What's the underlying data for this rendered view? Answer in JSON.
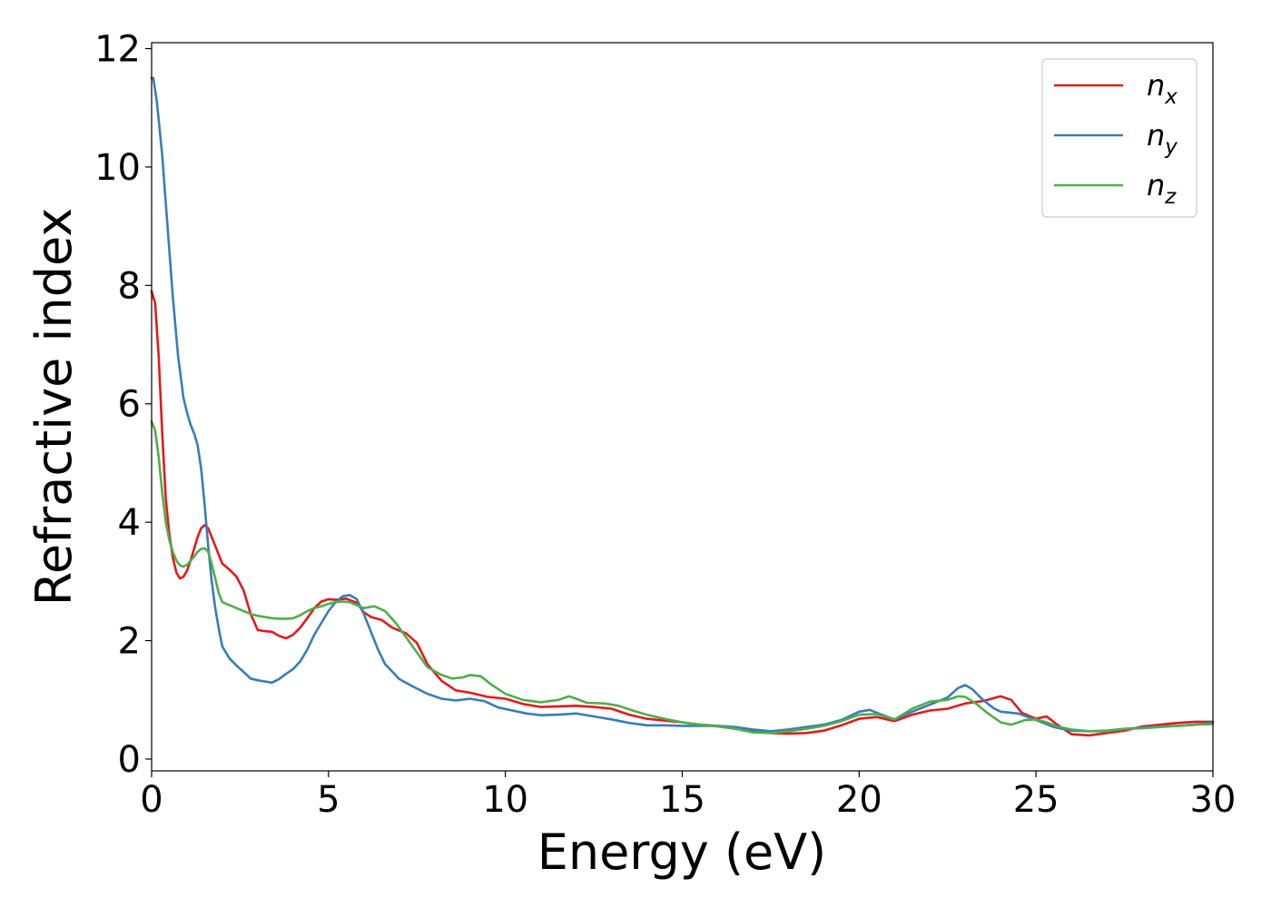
{
  "chart_data": {
    "type": "line",
    "title": "",
    "xlabel": "Energy (eV)",
    "ylabel": "Refractive index",
    "xlim": [
      0,
      30
    ],
    "ylim": [
      -0.2,
      12.1
    ],
    "xticks": [
      "0",
      "5",
      "10",
      "15",
      "20",
      "25",
      "30"
    ],
    "yticks": [
      "0",
      "2",
      "4",
      "6",
      "8",
      "10",
      "12"
    ],
    "grid": false,
    "legend_position": "top-right",
    "series": [
      {
        "name": "n_x",
        "label_base": "n",
        "label_sub": "x",
        "color": "#e41a1c",
        "points": [
          [
            0,
            7.9
          ],
          [
            0.1,
            7.7
          ],
          [
            0.2,
            6.8
          ],
          [
            0.3,
            5.5
          ],
          [
            0.4,
            4.4
          ],
          [
            0.5,
            3.8
          ],
          [
            0.6,
            3.4
          ],
          [
            0.7,
            3.15
          ],
          [
            0.8,
            3.05
          ],
          [
            0.9,
            3.08
          ],
          [
            1.0,
            3.18
          ],
          [
            1.1,
            3.35
          ],
          [
            1.2,
            3.55
          ],
          [
            1.3,
            3.75
          ],
          [
            1.4,
            3.9
          ],
          [
            1.5,
            3.95
          ],
          [
            1.6,
            3.9
          ],
          [
            1.7,
            3.75
          ],
          [
            1.8,
            3.6
          ],
          [
            1.9,
            3.45
          ],
          [
            2.0,
            3.3
          ],
          [
            2.2,
            3.2
          ],
          [
            2.4,
            3.08
          ],
          [
            2.6,
            2.85
          ],
          [
            2.8,
            2.45
          ],
          [
            3.0,
            2.18
          ],
          [
            3.2,
            2.16
          ],
          [
            3.4,
            2.15
          ],
          [
            3.6,
            2.08
          ],
          [
            3.8,
            2.04
          ],
          [
            4.0,
            2.1
          ],
          [
            4.2,
            2.22
          ],
          [
            4.4,
            2.38
          ],
          [
            4.6,
            2.55
          ],
          [
            4.8,
            2.66
          ],
          [
            5.0,
            2.7
          ],
          [
            5.2,
            2.69
          ],
          [
            5.5,
            2.71
          ],
          [
            5.8,
            2.64
          ],
          [
            6.0,
            2.48
          ],
          [
            6.2,
            2.4
          ],
          [
            6.5,
            2.35
          ],
          [
            6.8,
            2.22
          ],
          [
            7.2,
            2.12
          ],
          [
            7.5,
            1.96
          ],
          [
            7.8,
            1.6
          ],
          [
            8.2,
            1.32
          ],
          [
            8.6,
            1.16
          ],
          [
            9.0,
            1.12
          ],
          [
            9.5,
            1.05
          ],
          [
            10.0,
            1.02
          ],
          [
            10.5,
            0.93
          ],
          [
            11.0,
            0.88
          ],
          [
            11.5,
            0.89
          ],
          [
            12.0,
            0.9
          ],
          [
            12.5,
            0.88
          ],
          [
            13.0,
            0.85
          ],
          [
            13.5,
            0.75
          ],
          [
            14.0,
            0.68
          ],
          [
            14.5,
            0.65
          ],
          [
            15.0,
            0.62
          ],
          [
            15.5,
            0.58
          ],
          [
            16.0,
            0.56
          ],
          [
            16.5,
            0.52
          ],
          [
            17.0,
            0.47
          ],
          [
            17.5,
            0.44
          ],
          [
            18.0,
            0.43
          ],
          [
            18.5,
            0.44
          ],
          [
            19.0,
            0.48
          ],
          [
            19.5,
            0.57
          ],
          [
            20.0,
            0.68
          ],
          [
            20.5,
            0.71
          ],
          [
            21.0,
            0.64
          ],
          [
            21.5,
            0.75
          ],
          [
            22.0,
            0.82
          ],
          [
            22.5,
            0.85
          ],
          [
            23.0,
            0.94
          ],
          [
            23.5,
            0.98
          ],
          [
            24.0,
            1.06
          ],
          [
            24.3,
            1.0
          ],
          [
            24.6,
            0.78
          ],
          [
            25.0,
            0.68
          ],
          [
            25.3,
            0.72
          ],
          [
            25.6,
            0.58
          ],
          [
            26.0,
            0.42
          ],
          [
            26.5,
            0.4
          ],
          [
            27.0,
            0.44
          ],
          [
            27.5,
            0.48
          ],
          [
            28.0,
            0.55
          ],
          [
            28.5,
            0.58
          ],
          [
            29.0,
            0.61
          ],
          [
            29.5,
            0.63
          ],
          [
            30.0,
            0.63
          ]
        ]
      },
      {
        "name": "n_y",
        "label_base": "n",
        "label_sub": "y",
        "color": "#377eb8",
        "points": [
          [
            0,
            11.5
          ],
          [
            0.05,
            11.5
          ],
          [
            0.15,
            11.1
          ],
          [
            0.3,
            10.2
          ],
          [
            0.45,
            9.0
          ],
          [
            0.6,
            7.8
          ],
          [
            0.75,
            6.8
          ],
          [
            0.9,
            6.1
          ],
          [
            1.0,
            5.85
          ],
          [
            1.1,
            5.65
          ],
          [
            1.2,
            5.5
          ],
          [
            1.3,
            5.3
          ],
          [
            1.4,
            4.9
          ],
          [
            1.5,
            4.3
          ],
          [
            1.6,
            3.6
          ],
          [
            1.7,
            3.0
          ],
          [
            1.8,
            2.55
          ],
          [
            1.9,
            2.2
          ],
          [
            2.0,
            1.9
          ],
          [
            2.2,
            1.7
          ],
          [
            2.4,
            1.58
          ],
          [
            2.6,
            1.47
          ],
          [
            2.8,
            1.36
          ],
          [
            3.0,
            1.33
          ],
          [
            3.2,
            1.31
          ],
          [
            3.4,
            1.29
          ],
          [
            3.6,
            1.35
          ],
          [
            3.8,
            1.44
          ],
          [
            4.0,
            1.52
          ],
          [
            4.2,
            1.65
          ],
          [
            4.4,
            1.85
          ],
          [
            4.6,
            2.1
          ],
          [
            4.8,
            2.3
          ],
          [
            5.0,
            2.5
          ],
          [
            5.2,
            2.65
          ],
          [
            5.4,
            2.75
          ],
          [
            5.6,
            2.77
          ],
          [
            5.8,
            2.7
          ],
          [
            6.0,
            2.45
          ],
          [
            6.2,
            2.15
          ],
          [
            6.4,
            1.85
          ],
          [
            6.6,
            1.6
          ],
          [
            6.8,
            1.48
          ],
          [
            7.0,
            1.35
          ],
          [
            7.4,
            1.22
          ],
          [
            7.8,
            1.1
          ],
          [
            8.2,
            1.02
          ],
          [
            8.6,
            0.99
          ],
          [
            9.0,
            1.02
          ],
          [
            9.4,
            0.98
          ],
          [
            9.8,
            0.87
          ],
          [
            10.2,
            0.82
          ],
          [
            10.6,
            0.77
          ],
          [
            11.0,
            0.74
          ],
          [
            11.5,
            0.75
          ],
          [
            12.0,
            0.77
          ],
          [
            12.5,
            0.72
          ],
          [
            13.0,
            0.67
          ],
          [
            13.5,
            0.61
          ],
          [
            14.0,
            0.57
          ],
          [
            14.5,
            0.57
          ],
          [
            15.0,
            0.56
          ],
          [
            15.5,
            0.56
          ],
          [
            16.0,
            0.56
          ],
          [
            16.5,
            0.54
          ],
          [
            17.0,
            0.5
          ],
          [
            17.5,
            0.47
          ],
          [
            18.0,
            0.5
          ],
          [
            18.5,
            0.54
          ],
          [
            19.0,
            0.58
          ],
          [
            19.5,
            0.66
          ],
          [
            20.0,
            0.8
          ],
          [
            20.3,
            0.83
          ],
          [
            20.6,
            0.76
          ],
          [
            21.0,
            0.67
          ],
          [
            21.5,
            0.8
          ],
          [
            22.0,
            0.92
          ],
          [
            22.5,
            1.04
          ],
          [
            22.8,
            1.2
          ],
          [
            23.0,
            1.25
          ],
          [
            23.2,
            1.18
          ],
          [
            23.5,
            1.0
          ],
          [
            23.8,
            0.86
          ],
          [
            24.0,
            0.8
          ],
          [
            24.5,
            0.77
          ],
          [
            25.0,
            0.66
          ],
          [
            25.5,
            0.54
          ],
          [
            26.0,
            0.48
          ],
          [
            26.5,
            0.47
          ],
          [
            27.0,
            0.48
          ],
          [
            27.5,
            0.51
          ],
          [
            28.0,
            0.53
          ],
          [
            28.5,
            0.55
          ],
          [
            29.0,
            0.56
          ],
          [
            29.5,
            0.58
          ],
          [
            30.0,
            0.61
          ]
        ]
      },
      {
        "name": "n_z",
        "label_base": "n",
        "label_sub": "z",
        "color": "#4daf4a",
        "points": [
          [
            0,
            5.7
          ],
          [
            0.1,
            5.55
          ],
          [
            0.2,
            5.1
          ],
          [
            0.3,
            4.5
          ],
          [
            0.4,
            4.0
          ],
          [
            0.5,
            3.7
          ],
          [
            0.6,
            3.5
          ],
          [
            0.7,
            3.35
          ],
          [
            0.8,
            3.27
          ],
          [
            0.9,
            3.25
          ],
          [
            1.0,
            3.28
          ],
          [
            1.1,
            3.35
          ],
          [
            1.2,
            3.42
          ],
          [
            1.3,
            3.5
          ],
          [
            1.4,
            3.55
          ],
          [
            1.5,
            3.56
          ],
          [
            1.6,
            3.5
          ],
          [
            1.7,
            3.3
          ],
          [
            1.8,
            3.05
          ],
          [
            1.9,
            2.8
          ],
          [
            2.0,
            2.65
          ],
          [
            2.2,
            2.6
          ],
          [
            2.4,
            2.55
          ],
          [
            2.6,
            2.5
          ],
          [
            2.8,
            2.45
          ],
          [
            3.0,
            2.42
          ],
          [
            3.2,
            2.4
          ],
          [
            3.4,
            2.38
          ],
          [
            3.6,
            2.37
          ],
          [
            3.8,
            2.37
          ],
          [
            4.0,
            2.38
          ],
          [
            4.2,
            2.43
          ],
          [
            4.4,
            2.5
          ],
          [
            4.6,
            2.55
          ],
          [
            4.8,
            2.58
          ],
          [
            5.0,
            2.62
          ],
          [
            5.2,
            2.65
          ],
          [
            5.4,
            2.66
          ],
          [
            5.6,
            2.65
          ],
          [
            5.8,
            2.6
          ],
          [
            6.0,
            2.55
          ],
          [
            6.3,
            2.58
          ],
          [
            6.6,
            2.5
          ],
          [
            6.9,
            2.3
          ],
          [
            7.2,
            2.05
          ],
          [
            7.5,
            1.8
          ],
          [
            7.8,
            1.55
          ],
          [
            8.2,
            1.42
          ],
          [
            8.5,
            1.36
          ],
          [
            8.8,
            1.38
          ],
          [
            9.0,
            1.42
          ],
          [
            9.3,
            1.4
          ],
          [
            9.6,
            1.26
          ],
          [
            10.0,
            1.1
          ],
          [
            10.5,
            1.0
          ],
          [
            11.0,
            0.96
          ],
          [
            11.5,
            1.0
          ],
          [
            11.8,
            1.06
          ],
          [
            12.0,
            1.02
          ],
          [
            12.3,
            0.95
          ],
          [
            12.8,
            0.94
          ],
          [
            13.2,
            0.9
          ],
          [
            13.6,
            0.82
          ],
          [
            14.0,
            0.75
          ],
          [
            14.5,
            0.68
          ],
          [
            15.0,
            0.62
          ],
          [
            15.5,
            0.58
          ],
          [
            16.0,
            0.55
          ],
          [
            16.5,
            0.51
          ],
          [
            17.0,
            0.45
          ],
          [
            17.5,
            0.44
          ],
          [
            18.0,
            0.47
          ],
          [
            18.5,
            0.51
          ],
          [
            19.0,
            0.56
          ],
          [
            19.5,
            0.64
          ],
          [
            20.0,
            0.75
          ],
          [
            20.5,
            0.76
          ],
          [
            21.0,
            0.67
          ],
          [
            21.5,
            0.85
          ],
          [
            22.0,
            0.97
          ],
          [
            22.5,
            1.0
          ],
          [
            22.8,
            1.06
          ],
          [
            23.0,
            1.05
          ],
          [
            23.3,
            0.94
          ],
          [
            23.6,
            0.79
          ],
          [
            24.0,
            0.62
          ],
          [
            24.3,
            0.58
          ],
          [
            24.7,
            0.66
          ],
          [
            25.0,
            0.67
          ],
          [
            25.3,
            0.62
          ],
          [
            25.6,
            0.55
          ],
          [
            26.0,
            0.5
          ],
          [
            26.5,
            0.47
          ],
          [
            27.0,
            0.47
          ],
          [
            27.5,
            0.51
          ],
          [
            28.0,
            0.52
          ],
          [
            28.5,
            0.54
          ],
          [
            29.0,
            0.56
          ],
          [
            29.5,
            0.58
          ],
          [
            30.0,
            0.59
          ]
        ]
      }
    ]
  }
}
